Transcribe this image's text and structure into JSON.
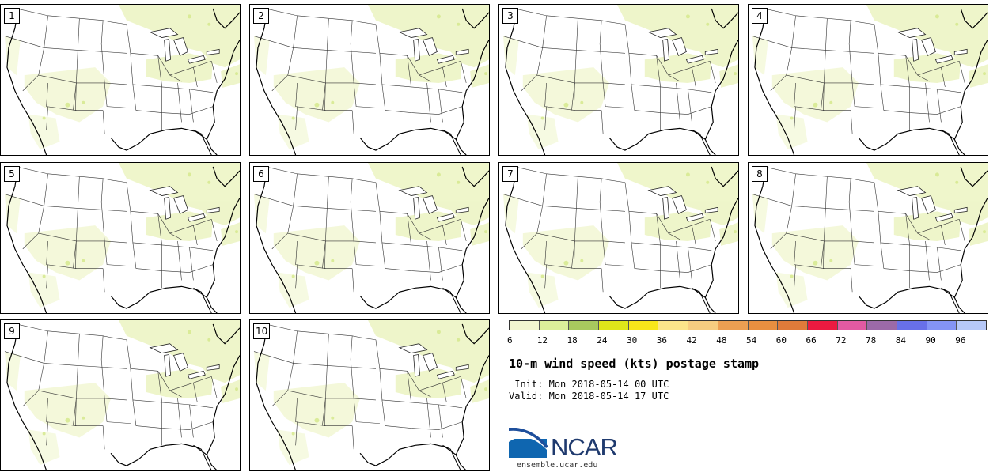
{
  "panels": [
    {
      "label": "1"
    },
    {
      "label": "2"
    },
    {
      "label": "3"
    },
    {
      "label": "4"
    },
    {
      "label": "5"
    },
    {
      "label": "6"
    },
    {
      "label": "7"
    },
    {
      "label": "8"
    },
    {
      "label": "9"
    },
    {
      "label": "10"
    }
  ],
  "colorbar": {
    "colors": [
      "#f2f6d0",
      "#dcef9a",
      "#a8c85e",
      "#dfe61a",
      "#f8e61a",
      "#fbe58a",
      "#f6cd80",
      "#ec9f52",
      "#e88f40",
      "#e07b3a",
      "#ec1a40",
      "#e25aa2",
      "#9c6aa8",
      "#6870e8",
      "#8494f4",
      "#b6c8f8"
    ],
    "tick_labels": [
      "6",
      "12",
      "18",
      "24",
      "30",
      "36",
      "42",
      "48",
      "54",
      "60",
      "66",
      "72",
      "78",
      "84",
      "90",
      "96"
    ]
  },
  "title": "10-m wind speed (kts) postage stamp",
  "init_line": " Init: Mon 2018-05-14 00 UTC",
  "valid_line": "Valid: Mon 2018-05-14 17 UTC",
  "logo_text": "NCAR",
  "logo_url": "ensemble.ucar.edu",
  "wind_fill_color": "#eef5c8"
}
